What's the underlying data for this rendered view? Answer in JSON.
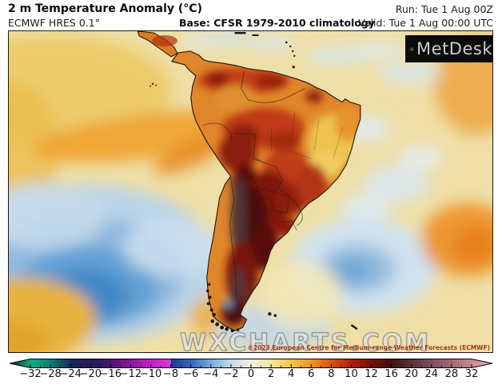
{
  "header": {
    "title": "2 m Temperature Anomaly (°C)",
    "model": "ECMWF HRES 0.1°",
    "base_climatology": "Base: CFSR 1979-2010 climatology",
    "run": "Run: Tue 1 Aug 00Z",
    "valid": "Valid: Tue 1 Aug 00:00 UTC"
  },
  "branding": {
    "logo_text": "MetDesk",
    "watermark": "WXCHARTS.COM",
    "copyright": "©2023 European Centre for Medium-range Weather Forecasts (ECMWF)"
  },
  "chart_data": {
    "type": "heatmap",
    "title": "2 m Temperature Anomaly (°C)",
    "region": "South America and surrounding Pacific / Atlantic oceans",
    "unit": "°C",
    "colorbar": {
      "tick_labels": [
        -32,
        -28,
        -24,
        -20,
        -16,
        -12,
        -10,
        -8,
        -6,
        -4,
        -2,
        0,
        2,
        4,
        6,
        8,
        10,
        12,
        16,
        20,
        24,
        28,
        32
      ],
      "tick_colors": [
        "#14ad85",
        "#0d7d74",
        "#15295a",
        "#221c52",
        "#4a1670",
        "#8f15a0",
        "#c01fc6",
        "#1e3a8e",
        "#2f64bd",
        "#7aadd9",
        "#c2d9ea",
        "#f3efdd",
        "#f6e49c",
        "#f5c34c",
        "#ee9523",
        "#d9530f",
        "#b21d0e",
        "#7a100a",
        "#44100c",
        "#54343a",
        "#7d4f5a",
        "#a26672",
        "#c98794"
      ],
      "under_color": "#102c24",
      "over_color": "#edafbc",
      "break_before": {
        "value": -8,
        "color": "#d93ad4"
      }
    },
    "anomaly_features": [
      {
        "area": "central Argentina / Chile Andes core",
        "anomaly_c": "+14 to +20"
      },
      {
        "area": "Patagonia and southern Chile",
        "anomaly_c": "+8 to +16"
      },
      {
        "area": "Paraguay, Bolivia, northern Argentina, Uruguay",
        "anomaly_c": "+8 to +14"
      },
      {
        "area": "Amazon basin, Colombia, Venezuela",
        "anomaly_c": "+4 to +10"
      },
      {
        "area": "northeast Brazil",
        "anomaly_c": "+1 to +4"
      },
      {
        "area": "southeast Pacific (large cold pool)",
        "anomaly_c": "-2 to -6"
      },
      {
        "area": "southwest Atlantic off Argentina",
        "anomaly_c": "-1 to -3"
      },
      {
        "area": "equatorial east Pacific band",
        "anomaly_c": "+2 to +6"
      },
      {
        "area": "central South Atlantic warm blob (east)",
        "anomaly_c": "+4 to +6"
      },
      {
        "area": "Caribbean patches",
        "anomaly_c": "-1 to 0"
      }
    ]
  }
}
